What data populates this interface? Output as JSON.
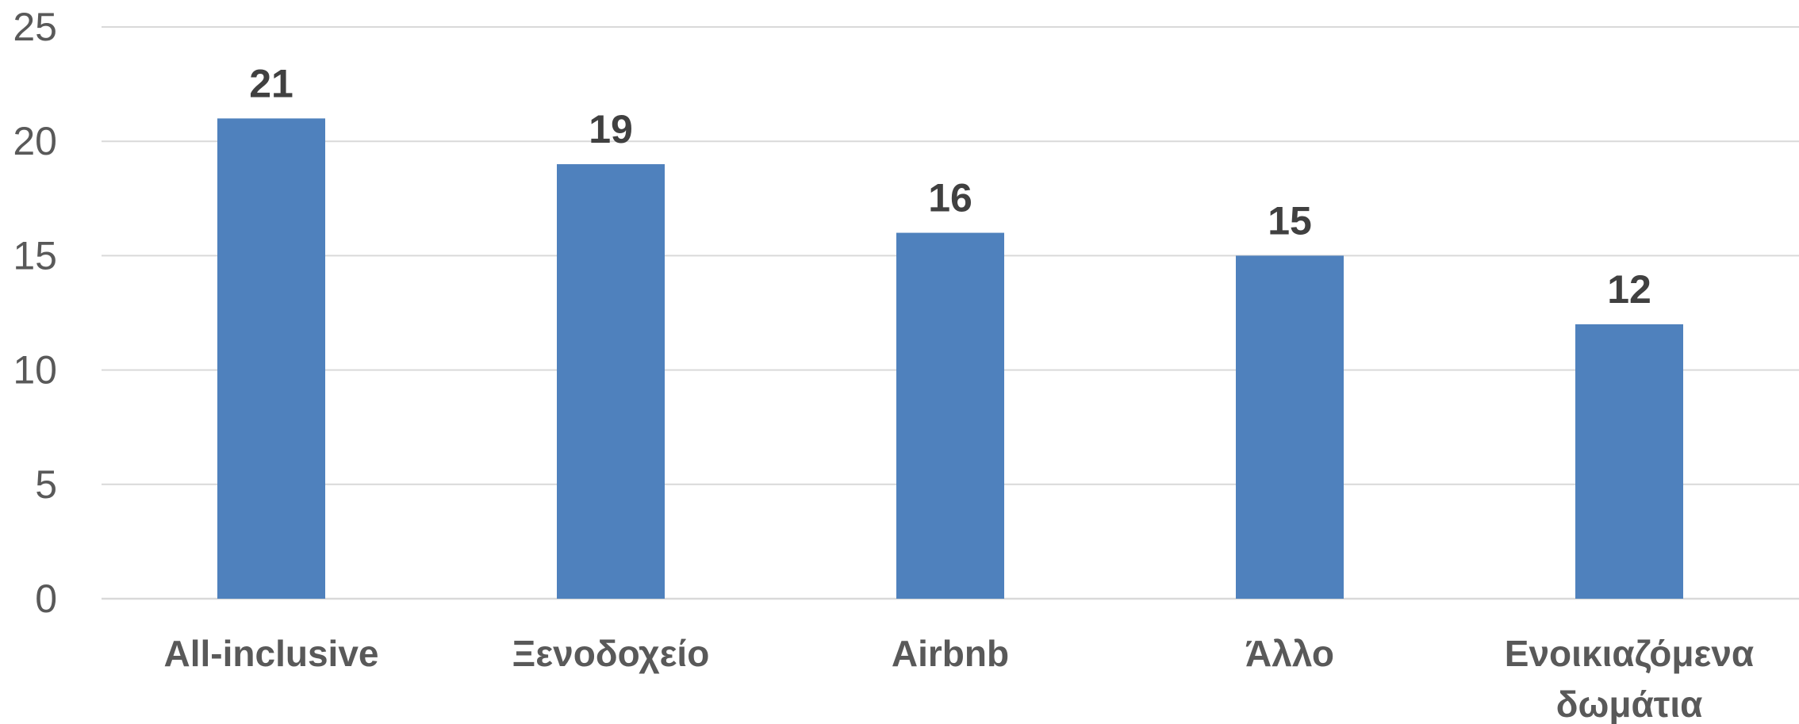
{
  "chart_data": {
    "type": "bar",
    "title": "",
    "xlabel": "",
    "ylabel": "",
    "categories": [
      [
        "All-inclusive"
      ],
      [
        "Ξενοδοχείο"
      ],
      [
        "Airbnb"
      ],
      [
        "Άλλο"
      ],
      [
        "Ενοικιαζόμενα",
        "δωμάτια"
      ]
    ],
    "values": [
      21,
      19,
      16,
      15,
      12
    ],
    "data_labels": [
      "21",
      "19",
      "16",
      "15",
      "12"
    ],
    "ylim": [
      0,
      25
    ],
    "yticks": [
      0,
      5,
      10,
      15,
      20,
      25
    ],
    "ytick_labels": [
      "0",
      "5",
      "10",
      "15",
      "20",
      "25"
    ],
    "grid": true,
    "legend": "none",
    "colors": {
      "bar": "#4f81bd",
      "grid": "#d9d9d9",
      "tick_text": "#595959",
      "label_text": "#404040"
    }
  }
}
